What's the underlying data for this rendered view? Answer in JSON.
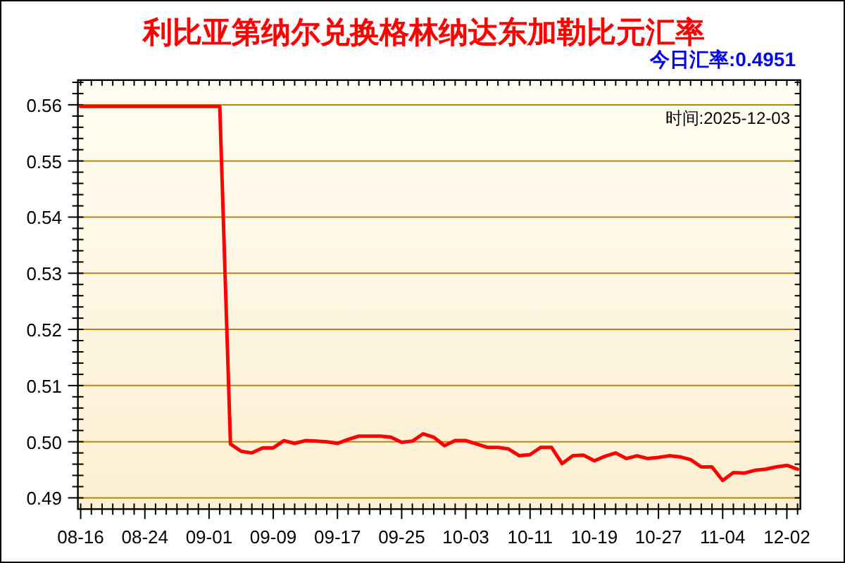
{
  "chart_data": {
    "type": "line",
    "title": "利比亚第纳尔兑换格林纳达东加勒比元汇率",
    "annotations": [
      "今日汇率:0.4951",
      "时间:2025-12-03"
    ],
    "categories": [
      "08-16",
      null,
      null,
      null,
      null,
      null,
      "08-24",
      null,
      null,
      null,
      null,
      null,
      "09-01",
      null,
      null,
      null,
      null,
      null,
      "09-09",
      null,
      null,
      null,
      null,
      null,
      "09-17",
      null,
      null,
      null,
      null,
      null,
      "09-25",
      null,
      null,
      null,
      null,
      null,
      "10-03",
      null,
      null,
      null,
      null,
      null,
      "10-11",
      null,
      null,
      null,
      null,
      null,
      "10-19",
      null,
      null,
      null,
      null,
      null,
      "10-27",
      null,
      null,
      null,
      null,
      null,
      "11-04",
      null,
      null,
      null,
      null,
      null,
      "12-02",
      null
    ],
    "ylim": [
      0.488,
      0.5644
    ],
    "yticks": [
      0.49,
      {
        "value": 0.492,
        "label": null
      },
      {
        "value": 0.494,
        "label": null
      },
      {
        "value": 0.496,
        "label": null
      },
      {
        "value": 0.498,
        "label": null
      },
      {
        "value": 0.5,
        "label": "0.50"
      },
      {
        "value": 0.502,
        "label": null
      },
      {
        "value": 0.504,
        "label": null
      },
      {
        "value": 0.506,
        "label": null
      },
      {
        "value": 0.508,
        "label": null
      },
      0.51,
      {
        "value": 0.512,
        "label": null
      },
      {
        "value": 0.514,
        "label": null
      },
      {
        "value": 0.516,
        "label": null
      },
      {
        "value": 0.518,
        "label": null
      },
      0.52,
      {
        "value": 0.522,
        "label": null
      },
      {
        "value": 0.524,
        "label": null
      },
      {
        "value": 0.526,
        "label": null
      },
      {
        "value": 0.528,
        "label": null
      },
      0.53,
      {
        "value": 0.532,
        "label": null
      },
      {
        "value": 0.534,
        "label": null
      },
      {
        "value": 0.536,
        "label": null
      },
      {
        "value": 0.538,
        "label": null
      },
      0.54,
      {
        "value": 0.542,
        "label": null
      },
      {
        "value": 0.544,
        "label": null
      },
      {
        "value": 0.546,
        "label": null
      },
      {
        "value": 0.548,
        "label": null
      },
      0.55,
      {
        "value": 0.552,
        "label": null
      },
      {
        "value": 0.554,
        "label": null
      },
      {
        "value": 0.556,
        "label": null
      },
      {
        "value": 0.558,
        "label": null
      },
      0.56,
      {
        "value": 0.562,
        "label": null
      },
      {
        "value": 0.564,
        "label": null
      }
    ],
    "grid": "y",
    "marker": "none",
    "line_style": "solid",
    "color": "#ff0000",
    "values": [
      0.5597,
      0.5597,
      0.5597,
      0.5597,
      0.5597,
      0.5597,
      0.5597,
      0.5597,
      0.5597,
      0.5597,
      0.5597,
      0.5597,
      0.5597,
      0.5597,
      0.4996,
      0.4983,
      0.498,
      0.4989,
      0.4989,
      0.5002,
      0.4997,
      0.5002,
      0.5001,
      0.5,
      0.4997,
      0.5004,
      0.501,
      0.501,
      0.501,
      0.5008,
      0.4999,
      0.5001,
      0.5014,
      0.5008,
      0.4993,
      0.5002,
      0.5002,
      0.4996,
      0.499,
      0.499,
      0.4987,
      0.4975,
      0.4977,
      0.499,
      0.499,
      0.4961,
      0.4975,
      0.4976,
      0.4966,
      0.4974,
      0.498,
      0.497,
      0.4975,
      0.497,
      0.4972,
      0.4975,
      0.4973,
      0.4968,
      0.4955,
      0.4955,
      0.4931,
      0.4945,
      0.4944,
      0.4949,
      0.4951,
      0.4955,
      0.4958,
      0.4951
    ]
  }
}
